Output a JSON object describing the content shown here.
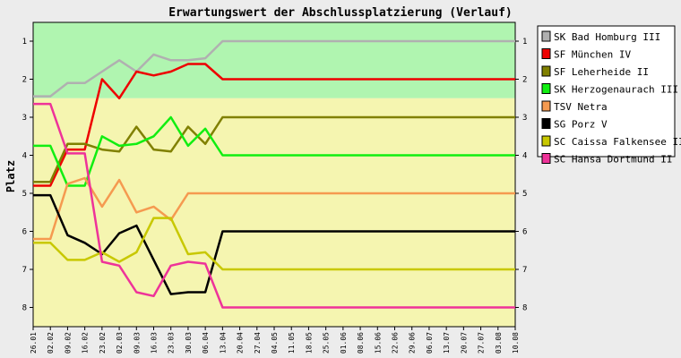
{
  "chart_data": {
    "type": "line",
    "title": "Erwartungswert der Abschlussplatzierung (Verlauf)",
    "ylabel": "Platz",
    "xlabel": "",
    "ylim": [
      1,
      8
    ],
    "y_inverted": true,
    "yticks": [
      1,
      2,
      3,
      4,
      5,
      6,
      7,
      8
    ],
    "x": [
      "26.01",
      "02.02",
      "09.02",
      "16.02",
      "23.02",
      "02.03",
      "09.03",
      "16.03",
      "23.03",
      "30.03",
      "06.04",
      "13.04",
      "20.04",
      "27.04",
      "04.05",
      "11.05",
      "18.05",
      "25.05",
      "01.06",
      "08.06",
      "15.06",
      "22.06",
      "29.06",
      "06.07",
      "13.07",
      "20.07",
      "27.07",
      "03.08",
      "10.08"
    ],
    "bands": [
      {
        "from": 0.5,
        "to": 2.5,
        "color": "#b0f5b0"
      },
      {
        "from": 2.5,
        "to": 8.5,
        "color": "#f5f5b0"
      }
    ],
    "legend_position": "right",
    "series": [
      {
        "name": "SK Bad Homburg III",
        "color": "#b0b0b0",
        "values": [
          2.45,
          2.45,
          2.1,
          2.1,
          1.8,
          1.5,
          1.8,
          1.35,
          1.5,
          1.5,
          1.45,
          1,
          1,
          1,
          1,
          1,
          1,
          1,
          1,
          1,
          1,
          1,
          1,
          1,
          1,
          1,
          1,
          1,
          1
        ]
      },
      {
        "name": "SF München IV",
        "color": "#ee0000",
        "values": [
          4.8,
          4.8,
          3.85,
          3.85,
          2,
          2.5,
          1.8,
          1.9,
          1.8,
          1.6,
          1.6,
          2,
          2,
          2,
          2,
          2,
          2,
          2,
          2,
          2,
          2,
          2,
          2,
          2,
          2,
          2,
          2,
          2,
          2
        ]
      },
      {
        "name": "SF Leherheide II",
        "color": "#808000",
        "values": [
          4.7,
          4.7,
          3.7,
          3.7,
          3.85,
          3.9,
          3.25,
          3.85,
          3.9,
          3.25,
          3.7,
          3,
          3,
          3,
          3,
          3,
          3,
          3,
          3,
          3,
          3,
          3,
          3,
          3,
          3,
          3,
          3,
          3,
          3
        ]
      },
      {
        "name": "SK Herzogenaurach III",
        "color": "#11ee11",
        "values": [
          3.75,
          3.75,
          4.8,
          4.8,
          3.5,
          3.75,
          3.7,
          3.5,
          3,
          3.75,
          3.3,
          4,
          4,
          4,
          4,
          4,
          4,
          4,
          4,
          4,
          4,
          4,
          4,
          4,
          4,
          4,
          4,
          4,
          4
        ]
      },
      {
        "name": "TSV Netra",
        "color": "#f59a50",
        "values": [
          6.2,
          6.2,
          4.75,
          4.6,
          5.35,
          4.65,
          5.5,
          5.35,
          5.7,
          5,
          5,
          5,
          5,
          5,
          5,
          5,
          5,
          5,
          5,
          5,
          5,
          5,
          5,
          5,
          5,
          5,
          5,
          5,
          5
        ]
      },
      {
        "name": "SG Porz V",
        "color": "#000000",
        "values": [
          5.05,
          5.05,
          6.1,
          6.3,
          6.6,
          6.05,
          5.85,
          6.75,
          7.65,
          7.6,
          7.6,
          6,
          6,
          6,
          6,
          6,
          6,
          6,
          6,
          6,
          6,
          6,
          6,
          6,
          6,
          6,
          6,
          6,
          6
        ]
      },
      {
        "name": "SC Caissa Falkensee II",
        "color": "#c8c800",
        "values": [
          6.3,
          6.3,
          6.75,
          6.75,
          6.55,
          6.8,
          6.55,
          5.65,
          5.65,
          6.6,
          6.55,
          7,
          7,
          7,
          7,
          7,
          7,
          7,
          7,
          7,
          7,
          7,
          7,
          7,
          7,
          7,
          7,
          7,
          7
        ]
      },
      {
        "name": "SC Hansa Dortmund II",
        "color": "#ee3399",
        "values": [
          2.65,
          2.65,
          3.95,
          3.95,
          6.8,
          6.9,
          7.6,
          7.7,
          6.9,
          6.8,
          6.85,
          8,
          8,
          8,
          8,
          8,
          8,
          8,
          8,
          8,
          8,
          8,
          8,
          8,
          8,
          8,
          8,
          8,
          8
        ]
      }
    ]
  }
}
